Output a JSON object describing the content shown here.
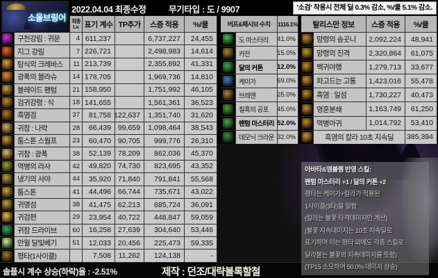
{
  "top_bar": {
    "date": "2022.04.04 최종수정",
    "weapon": "무기타입 : 도 / 9907",
    "notice": "'소검' 착용시 전체 딜 0.3% 감소, %/쿨 5.1% 감소."
  },
  "banner": {
    "class_name": "소울브링어"
  },
  "skill_table": {
    "headers": {
      "lv_top": "최종",
      "lv_bottom": "Lv.",
      "coef": "표기 계수",
      "tp": "TP추가",
      "boost": "스증 적용",
      "pct": "%/쿨"
    },
    "rows": [
      {
        "name": "구천강림 : 귀문",
        "lv": "4",
        "coef": "611,237",
        "tp": "",
        "boost": "6,737,227",
        "pct": "24,455",
        "icon": [
          "#c73fd8",
          "#38083f"
        ]
      },
      {
        "name": "지그 강림",
        "lv": "7",
        "coef": "226,721",
        "tp": "",
        "boost": "2,498,983",
        "pct": "14,614",
        "icon": [
          "#e06a35",
          "#3f1403"
        ]
      },
      {
        "name": "탐식의 크레바스",
        "lv": "11",
        "coef": "213,739",
        "tp": "",
        "boost": "2,355,892",
        "pct": "41,331",
        "icon": [
          "#d8a53c",
          "#342105"
        ]
      },
      {
        "name": "광폭의 블라슈",
        "lv": "14",
        "coef": "178,705",
        "tp": "",
        "boost": "1,969,736",
        "pct": "14,810",
        "icon": [
          "#df8f3e",
          "#3a1c02"
        ]
      },
      {
        "name": "블레이드 팬텀",
        "lv": "21",
        "coef": "158,950",
        "tp": "",
        "boost": "1,751,992",
        "pct": "46,105",
        "icon": [
          "#c9a244",
          "#2b1c04"
        ]
      },
      {
        "name": "검귀강령 : 식",
        "lv": "18",
        "coef": "141,655",
        "tp": "",
        "boost": "1,561,361",
        "pct": "36,523",
        "icon": [
          "#bd8d33",
          "#2d1a04"
        ]
      },
      {
        "name": "흑염검",
        "lv": "37",
        "coef": "81,758",
        "tp": "122,637",
        "boost": "1,351,740",
        "pct": "31,620",
        "icon": [
          "#ad7e2e",
          "#231404"
        ]
      },
      {
        "name": "귀참 : 나락",
        "lv": "28",
        "coef": "66,439",
        "tp": "99,659",
        "boost": "1,098,464",
        "pct": "38,543",
        "icon": [
          "#d2b56c",
          "#312104"
        ]
      },
      {
        "name": "툼스톤 스웜프",
        "lv": "23",
        "coef": "60,470",
        "tp": "90,705",
        "boost": "999,776",
        "pct": "26,310",
        "icon": [
          "#c79e3e",
          "#281903"
        ]
      },
      {
        "name": "귀참 : 광폭",
        "lv": "38",
        "coef": "52,139",
        "tp": "78,209",
        "boost": "862,036",
        "pct": "45,370",
        "icon": [
          "#d6bd7d",
          "#302008"
        ]
      },
      {
        "name": "역병의 라사",
        "lv": "42",
        "coef": "49,820",
        "tp": "74,730",
        "boost": "823,695",
        "pct": "43,352",
        "icon": [
          "#9da03e",
          "#182303"
        ]
      },
      {
        "name": "냉기의 사야",
        "lv": "44",
        "coef": "35,920",
        "tp": "71,840",
        "boost": "791,841",
        "pct": "55,568",
        "icon": [
          "#bd9e4e",
          "#232304"
        ]
      },
      {
        "name": "툼스톤",
        "lv": "41",
        "coef": "44,496",
        "tp": "66,744",
        "boost": "735,671",
        "pct": "43,022",
        "icon": [
          "#cfa63e",
          "#281a04"
        ]
      },
      {
        "name": "귀영섬",
        "lv": "38",
        "coef": "41,475",
        "tp": "62,213",
        "boost": "685,724",
        "pct": "36,091",
        "icon": [
          "#c6a141",
          "#2b1c07"
        ]
      },
      {
        "name": "귀검편",
        "lv": "29",
        "coef": "23,954",
        "tp": "40,722",
        "boost": "448,847",
        "pct": "59,059",
        "icon": [
          "#e7bf4e",
          "#2e1f04"
        ]
      },
      {
        "name": "귀참 드라이브",
        "lv": "60",
        "coef": "16,258",
        "tp": "27,639",
        "boost": "304,640",
        "pct": "53,446",
        "icon": [
          "#3f9f5e",
          "#04281a"
        ]
      },
      {
        "name": "만월 달빛베기",
        "lv": "51",
        "coef": "12,033",
        "tp": "20,456",
        "boost": "225,473",
        "pct": "59,335",
        "icon": [
          "#cdea9e",
          "#1e310d"
        ]
      },
      {
        "name": "평타(1사이클)",
        "lv": "",
        "coef": "7,508",
        "tp": "11,262",
        "boost": "124,138",
        "pct": "-",
        "icon": [
          "#9c7d2e",
          "#1d1403"
        ]
      }
    ]
  },
  "buff_table": {
    "header": "버프&패시브 수치",
    "header_value": "1116.1%",
    "rows": [
      {
        "name": "도 마스터리",
        "value": "41.0%",
        "cls": "",
        "icon": [
          "#4cbd4e",
          "#082608"
        ]
      },
      {
        "name": "카잔",
        "value": "15.0%",
        "cls": "",
        "icon": [
          "#ab8530",
          "#211505"
        ]
      },
      {
        "name": "달의 커튼",
        "value": "12.0%",
        "cls": "em",
        "icon": [
          "#42ad53",
          "#09230e"
        ]
      },
      {
        "name": "케이가",
        "value": "69.0%",
        "cls": "",
        "icon": [
          "#4f7fba",
          "#0a142d"
        ]
      },
      {
        "name": "브레멘",
        "value": "25.0%",
        "cls": "",
        "icon": [
          "#a3873e",
          "#1e1404"
        ]
      },
      {
        "name": "칠흑의 공포",
        "value": "45.0%",
        "cls": "",
        "icon": [
          "#539c43",
          "#0c2207"
        ]
      },
      {
        "name": "팬텀 마스터리",
        "value": "52.0%",
        "cls": "em",
        "icon": [
          "#4da34e",
          "#0b220e"
        ]
      },
      {
        "name": "데모닉 크라운",
        "value": "32.0%",
        "cls": "",
        "icon": [
          "#3d8c43",
          "#081e0b"
        ]
      }
    ]
  },
  "talisman_table": {
    "headers": {
      "info": "탈리스만 정보",
      "boost": "스증 적용",
      "pct": "%/쿨"
    },
    "rows": [
      {
        "name": "망령의 송곳니",
        "boost": "2,092,224",
        "pct": "48,941",
        "icon": [
          "#c2912f",
          "#1f1203"
        ]
      },
      {
        "name": "망령의 진격",
        "boost": "2,320,864",
        "pct": "61,075",
        "icon": [
          "#c79a36",
          "#221404"
        ]
      },
      {
        "name": "백귀야행",
        "boost": "1,279,713",
        "pct": "33,677",
        "icon": [
          "#bd9233",
          "#1f1304"
        ]
      },
      {
        "name": "파고드는 고통",
        "boost": "1,423,016",
        "pct": "55,478",
        "icon": [
          "#c49435",
          "#211304"
        ]
      },
      {
        "name": "흑염 : 일섬",
        "boost": "1,730,227",
        "pct": "40,473",
        "icon": [
          "#ba8d30",
          "#1d1103"
        ]
      },
      {
        "name": "영혼분쇄",
        "boost": "1,163,749",
        "pct": "61,250",
        "icon": [
          "#c09233",
          "#201204"
        ]
      },
      {
        "name": "역병아귀",
        "boost": "1,014,792",
        "pct": "53,410",
        "icon": [
          "#b98e31",
          "#1e1204"
        ]
      }
    ],
    "special": {
      "name": "흑염의 칼라 10초 지속딜",
      "pct": "385,394",
      "icon": [
        "#c79a36",
        "#221404"
      ]
    }
  },
  "notes": {
    "lines": [
      {
        "text": "아바타&엠블렘 반영 스킬:",
        "cls": "em"
      },
      {
        "text": "팬텀 마스터리 +1 / 달의 커튼 +2",
        "cls": "em"
      },
      {
        "text": "평타는 케이가+칼라가 적용된",
        "cls": ""
      },
      {
        "text": "1사이클(3타)을 말함",
        "cls": ""
      },
      {
        "text": "(칼라는 불꽃 타격데미지만 계산)",
        "cls": ""
      },
      {
        "text": "(불꽃 지속데미지는 10초 지속딜로",
        "cls": ""
      },
      {
        "text": "표기하며 이는 평타 외에도 각종 스킬로",
        "cls": ""
      },
      {
        "text": "달라붙는 불꽃의 지속데미지를 뜻함)",
        "cls": ""
      },
      {
        "text": "(TP15 소모하여 50.0% 데미지 상승)",
        "cls": ""
      }
    ]
  },
  "footer": {
    "solo_rate": "솔플시 계수 상승(하락)율 : -2.51%",
    "maker": "제작 : 던조/대략볼록할철"
  }
}
